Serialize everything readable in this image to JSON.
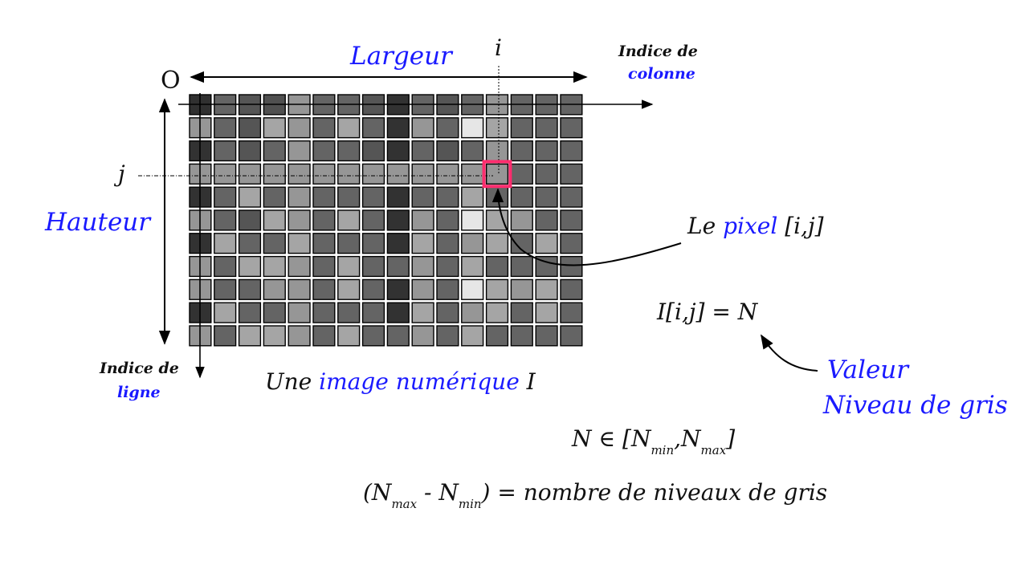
{
  "diagram": {
    "width_label": "Largeur",
    "height_label": "Hauteur",
    "origin_label": "O",
    "column_index_symbol": "i",
    "row_index_symbol": "j",
    "column_index_label_line1": "Indice de",
    "column_index_label_line2": "colonne",
    "row_index_label_line1": "Indice de",
    "row_index_label_line2": "ligne",
    "caption": {
      "prefix": "Une",
      "highlight": "image numérique",
      "suffix": "I"
    },
    "pixel_label": {
      "prefix": "Le",
      "highlight": "pixel",
      "suffix": "[i,j]"
    },
    "equation": "I[i,j] = N",
    "value_label_line1": "Valeur",
    "value_label_line2": "Niveau de gris",
    "range_formula": {
      "lead": "N ∈  [N",
      "sub1": "min",
      "mid": ",N",
      "sub2": "max",
      "end": "]"
    },
    "levels_formula": {
      "lead": "(N",
      "sub1": "max",
      "mid": " - N",
      "sub2": "min",
      "end": ") = nombre de niveaux de gris"
    },
    "highlighted_pixel": {
      "col": 12,
      "row": 3,
      "color": "#ff2d6e"
    },
    "colors": {
      "accent": "#1a1aff",
      "text": "#111111",
      "cell_border": "#000000"
    }
  },
  "grid": {
    "columns": 16,
    "rows": 11,
    "gray_levels": [
      [
        48,
        100,
        85,
        80,
        150,
        100,
        100,
        85,
        50,
        100,
        85,
        100,
        150,
        100,
        100,
        100
      ],
      [
        150,
        100,
        85,
        165,
        150,
        100,
        165,
        100,
        50,
        150,
        100,
        230,
        165,
        100,
        100,
        100
      ],
      [
        50,
        100,
        85,
        100,
        150,
        100,
        100,
        85,
        50,
        100,
        85,
        100,
        150,
        100,
        100,
        100
      ],
      [
        150,
        150,
        150,
        150,
        150,
        150,
        150,
        150,
        150,
        150,
        150,
        150,
        150,
        100,
        100,
        100
      ],
      [
        50,
        100,
        165,
        100,
        150,
        100,
        100,
        100,
        50,
        100,
        100,
        165,
        100,
        100,
        100,
        100
      ],
      [
        150,
        100,
        85,
        165,
        150,
        100,
        165,
        100,
        50,
        150,
        100,
        230,
        165,
        150,
        100,
        100
      ],
      [
        50,
        165,
        100,
        100,
        165,
        100,
        100,
        100,
        50,
        165,
        100,
        150,
        165,
        100,
        165,
        100
      ],
      [
        150,
        100,
        165,
        165,
        150,
        100,
        165,
        100,
        100,
        150,
        100,
        165,
        100,
        100,
        100,
        100
      ],
      [
        150,
        100,
        100,
        150,
        150,
        100,
        165,
        100,
        50,
        150,
        100,
        230,
        165,
        150,
        165,
        100
      ],
      [
        50,
        165,
        100,
        100,
        150,
        100,
        100,
        100,
        50,
        165,
        100,
        150,
        165,
        100,
        165,
        100
      ],
      [
        150,
        100,
        165,
        165,
        150,
        100,
        165,
        100,
        100,
        150,
        100,
        165,
        100,
        100,
        100,
        100
      ]
    ]
  }
}
